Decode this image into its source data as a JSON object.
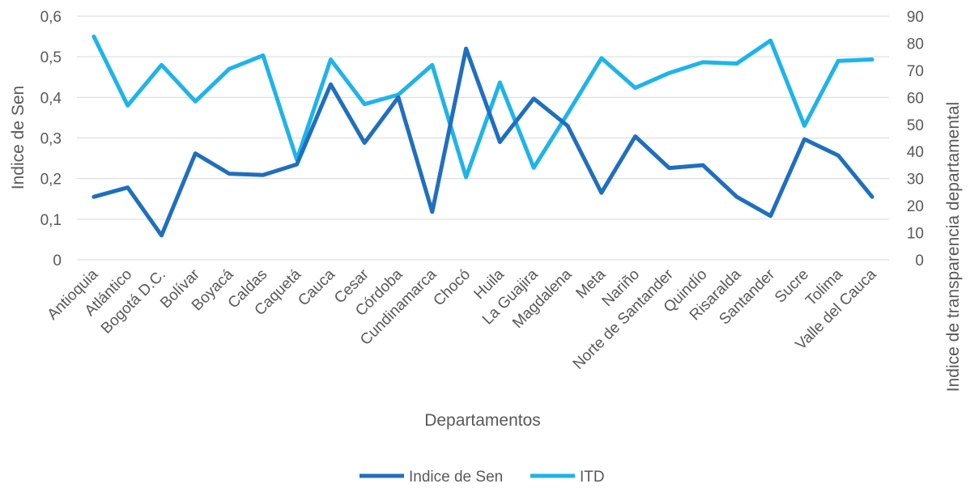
{
  "chart_data": {
    "type": "line",
    "title": "",
    "xlabel": "Departamentos",
    "ylabel": "Indice de Sen",
    "y2label": "Indice de transparencia departamental",
    "ylim": [
      0,
      0.6
    ],
    "y2lim": [
      0,
      90
    ],
    "yticks": [
      "0",
      "0,1",
      "0,2",
      "0,3",
      "0,4",
      "0,5",
      "0,6"
    ],
    "y2ticks": [
      "0",
      "10",
      "20",
      "30",
      "40",
      "50",
      "60",
      "70",
      "80",
      "90"
    ],
    "grid": true,
    "legend_position": "bottom",
    "categories": [
      "Antioquia",
      "Atlántico",
      "Bogotá D.C.",
      "Bolívar",
      "Boyacá",
      "Caldas",
      "Caquetá",
      "Cauca",
      "Cesar",
      "Córdoba",
      "Cundinamarca",
      "Chocó",
      "Huila",
      "La Guajira",
      "Magdalena",
      "Meta",
      "Nariño",
      "Norte de Santander",
      "Quindío",
      "Risaralda",
      "Santander",
      "Sucre",
      "Tolima",
      "Valle del Cauca"
    ],
    "series": [
      {
        "name": "Indice de Sen",
        "axis": "left",
        "color": "#1f6fbf",
        "values": [
          0.155,
          0.178,
          0.06,
          0.262,
          0.212,
          0.209,
          0.235,
          0.432,
          0.288,
          0.4,
          0.118,
          0.52,
          0.29,
          0.397,
          0.33,
          0.165,
          0.304,
          0.226,
          0.233,
          0.155,
          0.108,
          0.297,
          0.257,
          0.155
        ]
      },
      {
        "name": "ITD",
        "axis": "right",
        "color": "#1eb4ea",
        "values": [
          82.5,
          57,
          72,
          58.5,
          70.5,
          75.5,
          37,
          74,
          57.5,
          61,
          72,
          30.5,
          65.5,
          34,
          54,
          74.5,
          63.5,
          69,
          73,
          72.5,
          81,
          49.5,
          73.5,
          74
        ]
      }
    ]
  }
}
